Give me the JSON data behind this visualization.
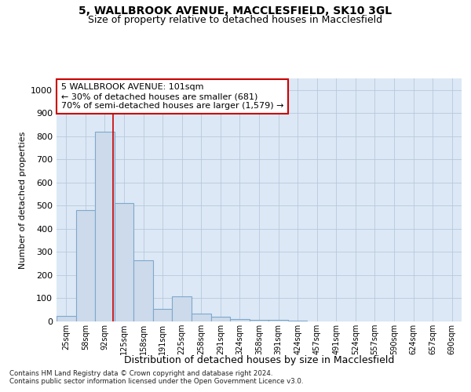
{
  "title1": "5, WALLBROOK AVENUE, MACCLESFIELD, SK10 3GL",
  "title2": "Size of property relative to detached houses in Macclesfield",
  "xlabel": "Distribution of detached houses by size in Macclesfield",
  "ylabel": "Number of detached properties",
  "bin_labels": [
    "25sqm",
    "58sqm",
    "92sqm",
    "125sqm",
    "158sqm",
    "191sqm",
    "225sqm",
    "258sqm",
    "291sqm",
    "324sqm",
    "358sqm",
    "391sqm",
    "424sqm",
    "457sqm",
    "491sqm",
    "524sqm",
    "557sqm",
    "590sqm",
    "624sqm",
    "657sqm",
    "690sqm"
  ],
  "bar_values": [
    25,
    480,
    820,
    510,
    265,
    55,
    110,
    35,
    20,
    10,
    8,
    8,
    4,
    0,
    0,
    0,
    0,
    0,
    0,
    0,
    0
  ],
  "bar_color": "#ccdaeb",
  "bar_edge_color": "#7fa8cc",
  "bar_linewidth": 0.8,
  "grid_color": "#b8c8dc",
  "background_color": "#dce8f5",
  "red_line_x": 2.45,
  "annotation_text": "5 WALLBROOK AVENUE: 101sqm\n← 30% of detached houses are smaller (681)\n70% of semi-detached houses are larger (1,579) →",
  "annotation_box_color": "white",
  "annotation_border_color": "#cc0000",
  "ylim": [
    0,
    1050
  ],
  "yticks": [
    0,
    100,
    200,
    300,
    400,
    500,
    600,
    700,
    800,
    900,
    1000
  ],
  "footer1": "Contains HM Land Registry data © Crown copyright and database right 2024.",
  "footer2": "Contains public sector information licensed under the Open Government Licence v3.0."
}
